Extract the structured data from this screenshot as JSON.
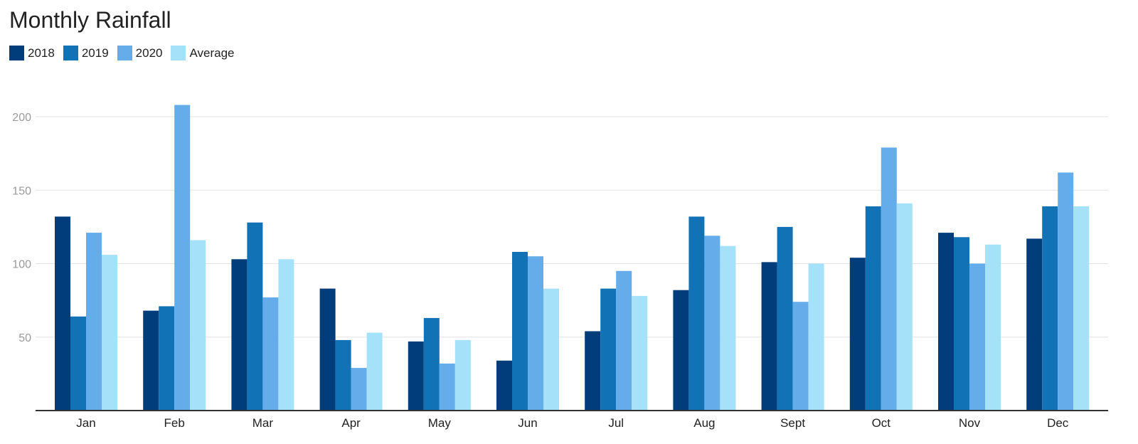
{
  "chart_data": {
    "type": "bar",
    "title": "Monthly Rainfall",
    "categories": [
      "Jan",
      "Feb",
      "Mar",
      "Apr",
      "May",
      "Jun",
      "Jul",
      "Aug",
      "Sept",
      "Oct",
      "Nov",
      "Dec"
    ],
    "series": [
      {
        "name": "2018",
        "color": "#003d7a",
        "values": [
          132,
          68,
          103,
          83,
          47,
          34,
          54,
          82,
          101,
          104,
          121,
          117
        ]
      },
      {
        "name": "2019",
        "color": "#1272b6",
        "values": [
          64,
          71,
          128,
          48,
          63,
          108,
          83,
          132,
          125,
          139,
          118,
          139
        ]
      },
      {
        "name": "2020",
        "color": "#65aceb",
        "values": [
          121,
          208,
          77,
          29,
          32,
          105,
          95,
          119,
          74,
          179,
          100,
          162
        ]
      },
      {
        "name": "Average",
        "color": "#a6e1fa",
        "values": [
          106,
          116,
          103,
          53,
          48,
          83,
          78,
          112,
          100,
          141,
          113,
          139
        ]
      }
    ],
    "yticks": [
      50,
      100,
      150,
      200
    ],
    "ylim": [
      0,
      220
    ],
    "xlabel": "",
    "ylabel": "",
    "grid": true,
    "legend_position": "top-left"
  }
}
